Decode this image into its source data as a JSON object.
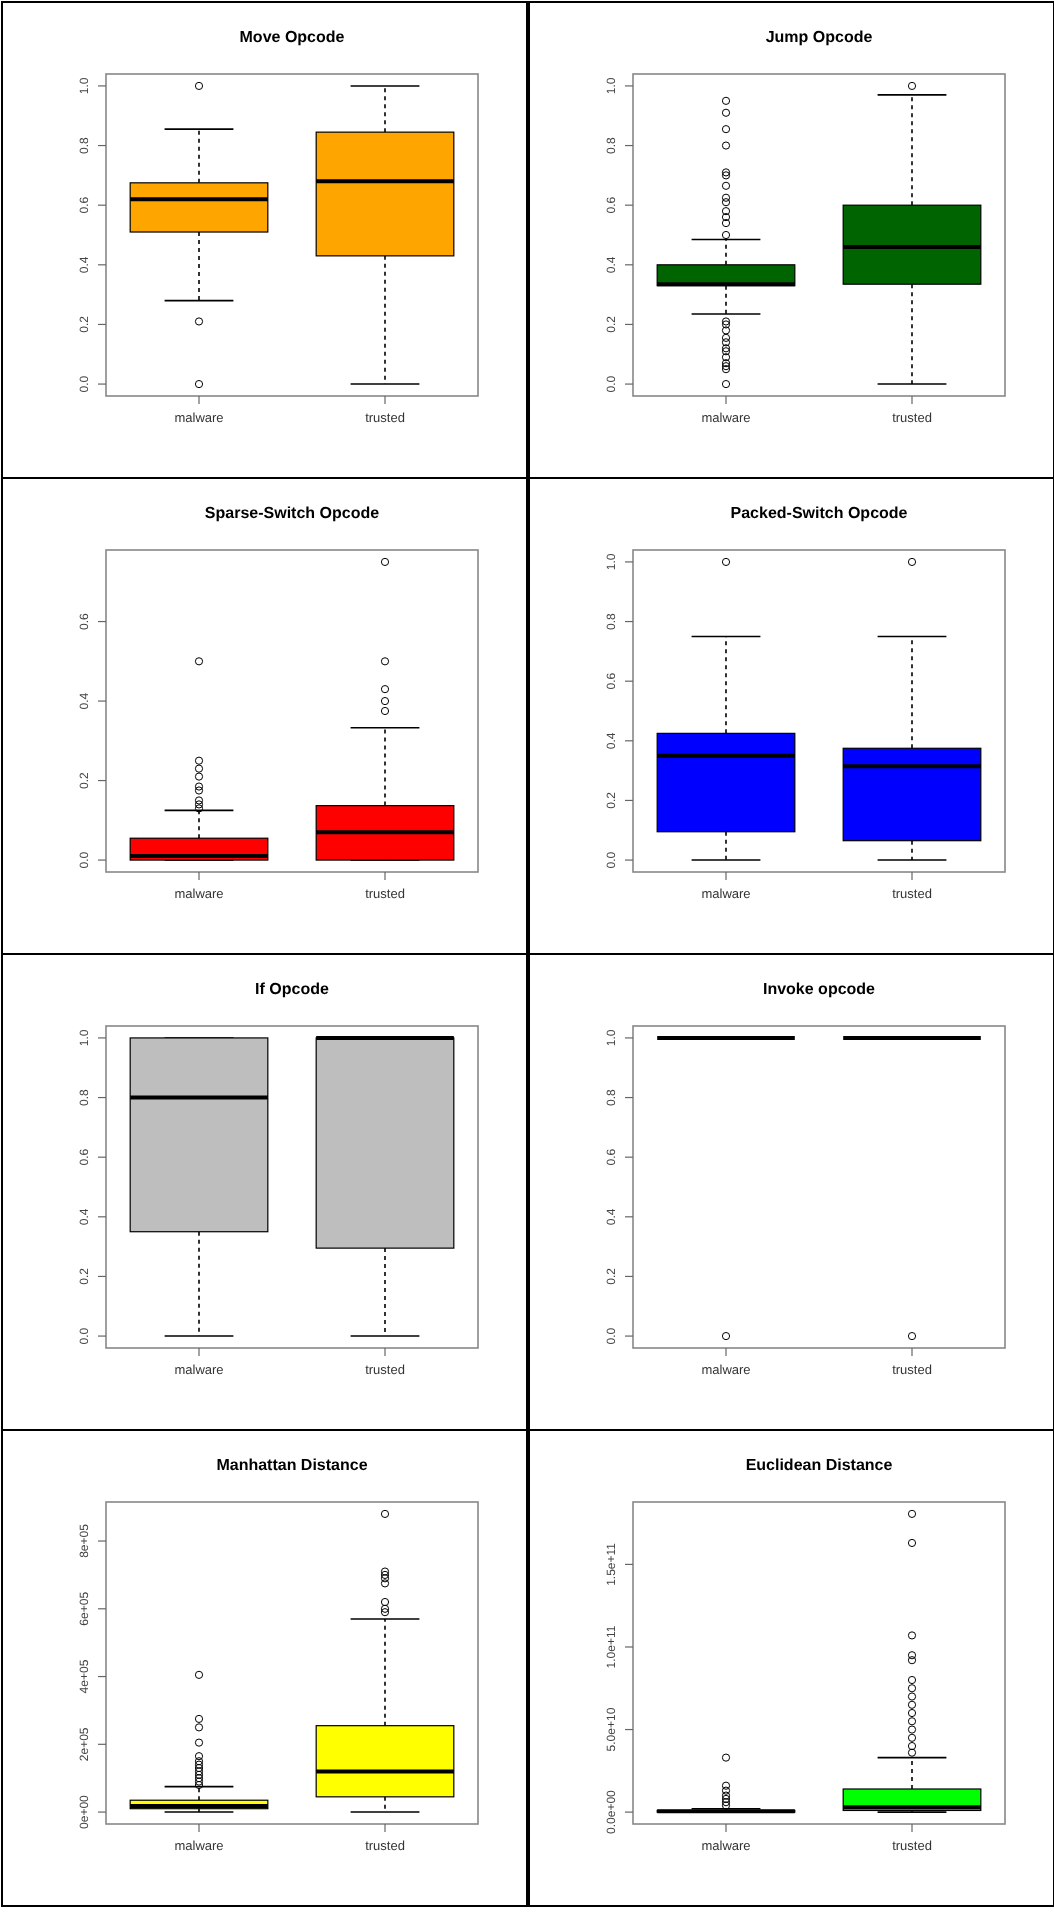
{
  "chart_data": [
    {
      "type": "box",
      "title": "Move Opcode",
      "categories": [
        "malware",
        "trusted"
      ],
      "color": "#ffa500",
      "ylim": [
        -0.04,
        1.04
      ],
      "yticks": [
        {
          "value": 0,
          "label": "0.0"
        },
        {
          "value": 0.2,
          "label": "0.2"
        },
        {
          "value": 0.4,
          "label": "0.4"
        },
        {
          "value": 0.6,
          "label": "0.6"
        },
        {
          "value": 0.8,
          "label": "0.8"
        },
        {
          "value": 1,
          "label": "1.0"
        }
      ],
      "boxes": [
        {
          "low": 0.28,
          "q1": 0.51,
          "median": 0.62,
          "q3": 0.675,
          "high": 0.855,
          "outliers": [
            1.0,
            0.21,
            0.0
          ]
        },
        {
          "low": 0,
          "q1": 0.43,
          "median": 0.68,
          "q3": 0.845,
          "high": 1.0
        }
      ]
    },
    {
      "type": "box",
      "title": "Jump Opcode",
      "categories": [
        "malware",
        "trusted"
      ],
      "color": "#006400",
      "ylim": [
        -0.04,
        1.04
      ],
      "yticks": [
        {
          "value": 0,
          "label": "0.0"
        },
        {
          "value": 0.2,
          "label": "0.2"
        },
        {
          "value": 0.4,
          "label": "0.4"
        },
        {
          "value": 0.6,
          "label": "0.6"
        },
        {
          "value": 0.8,
          "label": "0.8"
        },
        {
          "value": 1,
          "label": "1.0"
        }
      ],
      "boxes": [
        {
          "low": 0.235,
          "q1": 0.33,
          "median": 0.335,
          "q3": 0.4,
          "high": 0.485,
          "outliers": [
            0.95,
            0.91,
            0.855,
            0.8,
            0.71,
            0.7,
            0.665,
            0.625,
            0.61,
            0.58,
            0.56,
            0.54,
            0.5,
            0.21,
            0.2,
            0.18,
            0.155,
            0.14,
            0.12,
            0.11,
            0.09,
            0.07,
            0.06,
            0.05,
            0.0
          ]
        },
        {
          "low": 0,
          "q1": 0.335,
          "median": 0.46,
          "q3": 0.6,
          "high": 0.97,
          "outliers": [
            1.0
          ]
        }
      ]
    },
    {
      "type": "box",
      "title": "Sparse-Switch Opcode",
      "categories": [
        "malware",
        "trusted"
      ],
      "color": "#ff0000",
      "ylim": [
        -0.03,
        0.78
      ],
      "yticks": [
        {
          "value": 0,
          "label": "0.0"
        },
        {
          "value": 0.2,
          "label": "0.2"
        },
        {
          "value": 0.4,
          "label": "0.4"
        },
        {
          "value": 0.6,
          "label": "0.6"
        }
      ],
      "boxes": [
        {
          "low": 0,
          "q1": 0,
          "median": 0.01,
          "q3": 0.055,
          "high": 0.125,
          "outliers": [
            0.5,
            0.25,
            0.23,
            0.21,
            0.185,
            0.175,
            0.15,
            0.14,
            0.13
          ]
        },
        {
          "low": 0,
          "q1": 0,
          "median": 0.07,
          "q3": 0.137,
          "high": 0.333,
          "outliers": [
            0.75,
            0.5,
            0.43,
            0.4,
            0.375
          ]
        }
      ]
    },
    {
      "type": "box",
      "title": "Packed-Switch Opcode",
      "categories": [
        "malware",
        "trusted"
      ],
      "color": "#0000ff",
      "ylim": [
        -0.04,
        1.04
      ],
      "yticks": [
        {
          "value": 0,
          "label": "0.0"
        },
        {
          "value": 0.2,
          "label": "0.2"
        },
        {
          "value": 0.4,
          "label": "0.4"
        },
        {
          "value": 0.6,
          "label": "0.6"
        },
        {
          "value": 0.8,
          "label": "0.8"
        },
        {
          "value": 1,
          "label": "1.0"
        }
      ],
      "boxes": [
        {
          "low": 0,
          "q1": 0.095,
          "median": 0.35,
          "q3": 0.425,
          "high": 0.75,
          "outliers": [
            1.0
          ]
        },
        {
          "low": 0,
          "q1": 0.065,
          "median": 0.315,
          "q3": 0.375,
          "high": 0.75,
          "outliers": [
            1.0
          ]
        }
      ]
    },
    {
      "type": "box",
      "title": "If Opcode",
      "categories": [
        "malware",
        "trusted"
      ],
      "color": "#bebebe",
      "ylim": [
        -0.04,
        1.04
      ],
      "yticks": [
        {
          "value": 0,
          "label": "0.0"
        },
        {
          "value": 0.2,
          "label": "0.2"
        },
        {
          "value": 0.4,
          "label": "0.4"
        },
        {
          "value": 0.6,
          "label": "0.6"
        },
        {
          "value": 0.8,
          "label": "0.8"
        },
        {
          "value": 1,
          "label": "1.0"
        }
      ],
      "boxes": [
        {
          "low": 0,
          "q1": 0.35,
          "median": 0.8,
          "q3": 1.0,
          "high": 1.0
        },
        {
          "low": 0,
          "q1": 0.295,
          "median": 1.0,
          "q3": 1.0,
          "high": 1.0
        }
      ]
    },
    {
      "type": "box",
      "title": "Invoke opcode",
      "categories": [
        "malware",
        "trusted"
      ],
      "ylim": [
        -0.04,
        1.04
      ],
      "yticks": [
        {
          "value": 0,
          "label": "0.0"
        },
        {
          "value": 0.2,
          "label": "0.2"
        },
        {
          "value": 0.4,
          "label": "0.4"
        },
        {
          "value": 0.6,
          "label": "0.6"
        },
        {
          "value": 0.8,
          "label": "0.8"
        },
        {
          "value": 1,
          "label": "1.0"
        }
      ],
      "boxes": [
        {
          "low": 1.0,
          "q1": 1.0,
          "median": 1.0,
          "q3": 1.0,
          "high": 1.0,
          "outliers": [
            0.0
          ]
        },
        {
          "low": 1.0,
          "q1": 1.0,
          "median": 1.0,
          "q3": 1.0,
          "high": 1.0,
          "outliers": [
            0.0
          ]
        }
      ]
    },
    {
      "type": "box",
      "title": "Manhattan Distance",
      "categories": [
        "malware",
        "trusted"
      ],
      "color": "#ffff00",
      "ylim": [
        -35200,
        915200
      ],
      "yticks": [
        {
          "value": 0,
          "label": "0e+00"
        },
        {
          "value": 200000,
          "label": "2e+05"
        },
        {
          "value": 400000,
          "label": "4e+05"
        },
        {
          "value": 600000,
          "label": "6e+05"
        },
        {
          "value": 800000,
          "label": "8e+05"
        }
      ],
      "boxes": [
        {
          "low": 0,
          "q1": 10000,
          "median": 18000,
          "q3": 35000,
          "high": 75000,
          "outliers": [
            405000,
            275000,
            250000,
            205000,
            165000,
            150000,
            140000,
            130000,
            120000,
            110000,
            100000,
            90000,
            80000
          ]
        },
        {
          "low": 0,
          "q1": 45000,
          "median": 120000,
          "q3": 255000,
          "high": 570000,
          "outliers": [
            880000,
            710000,
            700000,
            690000,
            675000,
            620000,
            600000,
            590000
          ]
        }
      ]
    },
    {
      "type": "box",
      "title": "Euclidean Distance",
      "categories": [
        "malware",
        "trusted"
      ],
      "color": "#00ff00",
      "ylim": [
        -7200000000,
        187800000000
      ],
      "yticks": [
        {
          "value": 0,
          "label": "0.0e+00"
        },
        {
          "value": 50000000000,
          "label": "5.0e+10"
        },
        {
          "value": 100000000000,
          "label": "1.0e+11"
        },
        {
          "value": 150000000000,
          "label": "1.5e+11"
        }
      ],
      "boxes": [
        {
          "low": 0,
          "q1": 0,
          "median": 500000000,
          "q3": 1000000000,
          "high": 2000000000,
          "outliers": [
            33000000000,
            16000000000,
            13000000000,
            10000000000,
            8000000000,
            6000000000,
            4000000000
          ]
        },
        {
          "low": 0,
          "q1": 1000000000,
          "median": 3000000000,
          "q3": 14000000000,
          "high": 33000000000,
          "outliers": [
            180600000000,
            163000000000,
            107000000000,
            95000000000,
            92000000000,
            80000000000,
            75000000000,
            70000000000,
            65000000000,
            60000000000,
            55000000000,
            50000000000,
            45000000000,
            40000000000,
            36000000000
          ]
        }
      ]
    }
  ]
}
